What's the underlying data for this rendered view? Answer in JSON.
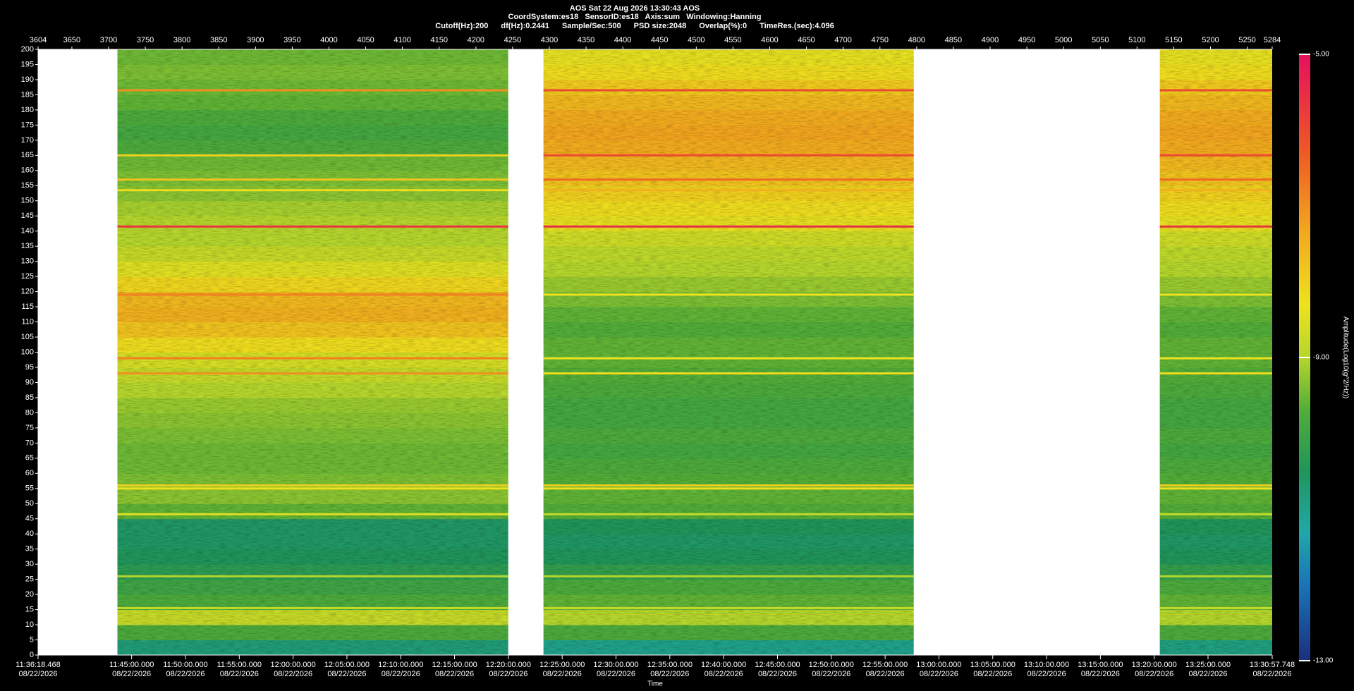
{
  "chart_data": {
    "type": "spectrogram",
    "title": "AOS  Sat 22 Aug 2026 13:30:43  AOS",
    "subtitle": "CoordSystem:es18   SensorID:es18   Axis:sum   Windowing:Hanning",
    "parameters": [
      "Cutoff(Hz):200",
      "df(Hz):0.2441",
      "Sample/Sec:500",
      "PSD size:2048",
      "Overlap(%):0",
      "TimeRes.(sec):4.096"
    ],
    "xlabel": "Time",
    "colorbar_label": "Amplitude(Log10(g^2/Hz))",
    "xlim": [
      3604,
      5284
    ],
    "xticks": [
      3604,
      3650,
      3700,
      3750,
      3800,
      3850,
      3900,
      3950,
      4000,
      4050,
      4100,
      4150,
      4200,
      4250,
      4300,
      4350,
      4400,
      4450,
      4500,
      4550,
      4600,
      4650,
      4700,
      4750,
      4800,
      4850,
      4900,
      4950,
      5000,
      5050,
      5100,
      5150,
      5200,
      5250,
      5284
    ],
    "time_ticks": [
      {
        "value": 3604,
        "label": "11:36:18.468",
        "date": "08/22/2026"
      },
      {
        "value": 3731.36,
        "label": "11:45:00.000",
        "date": "08/22/2026"
      },
      {
        "value": 3804.63,
        "label": "11:50:00.000",
        "date": "08/22/2026"
      },
      {
        "value": 3877.89,
        "label": "11:55:00.000",
        "date": "08/22/2026"
      },
      {
        "value": 3951.15,
        "label": "12:00:00.000",
        "date": "08/22/2026"
      },
      {
        "value": 4024.42,
        "label": "12:05:00.000",
        "date": "08/22/2026"
      },
      {
        "value": 4097.68,
        "label": "12:10:00.000",
        "date": "08/22/2026"
      },
      {
        "value": 4170.95,
        "label": "12:15:00.000",
        "date": "08/22/2026"
      },
      {
        "value": 4244.21,
        "label": "12:20:00.000",
        "date": "08/22/2026"
      },
      {
        "value": 4317.47,
        "label": "12:25:00.000",
        "date": "08/22/2026"
      },
      {
        "value": 4390.74,
        "label": "12:30:00.000",
        "date": "08/22/2026"
      },
      {
        "value": 4464.0,
        "label": "12:35:00.000",
        "date": "08/22/2026"
      },
      {
        "value": 4537.27,
        "label": "12:40:00.000",
        "date": "08/22/2026"
      },
      {
        "value": 4610.53,
        "label": "12:45:00.000",
        "date": "08/22/2026"
      },
      {
        "value": 4683.79,
        "label": "12:50:00.000",
        "date": "08/22/2026"
      },
      {
        "value": 4757.06,
        "label": "12:55:00.000",
        "date": "08/22/2026"
      },
      {
        "value": 4830.32,
        "label": "13:00:00.000",
        "date": "08/22/2026"
      },
      {
        "value": 4903.59,
        "label": "13:05:00.000",
        "date": "08/22/2026"
      },
      {
        "value": 4976.85,
        "label": "13:10:00.000",
        "date": "08/22/2026"
      },
      {
        "value": 5050.12,
        "label": "13:15:00.000",
        "date": "08/22/2026"
      },
      {
        "value": 5123.38,
        "label": "13:20:00.000",
        "date": "08/22/2026"
      },
      {
        "value": 5196.64,
        "label": "13:25:00.000",
        "date": "08/22/2026"
      },
      {
        "value": 5284,
        "label": "13:30:57.748",
        "date": "08/22/2026"
      }
    ],
    "ylim": [
      0,
      200
    ],
    "yticks": [
      0,
      5,
      10,
      15,
      20,
      25,
      30,
      35,
      40,
      45,
      50,
      55,
      60,
      65,
      70,
      75,
      80,
      85,
      90,
      95,
      100,
      105,
      110,
      115,
      120,
      125,
      130,
      135,
      140,
      145,
      150,
      155,
      160,
      165,
      170,
      175,
      180,
      185,
      190,
      195,
      200
    ],
    "ybins": [
      0,
      5,
      10,
      15,
      20,
      25,
      30,
      35,
      40,
      45,
      50,
      55,
      60,
      65,
      70,
      75,
      80,
      85,
      90,
      95,
      100,
      105,
      110,
      115,
      120,
      125,
      130,
      135,
      140,
      145,
      150,
      155,
      160,
      165,
      170,
      175,
      180,
      185,
      190,
      195,
      200
    ],
    "segments": [
      {
        "start": 3712,
        "end": 4244,
        "values": [
          -10.8,
          -9.8,
          -8.8,
          -9.8,
          -10.0,
          -10.3,
          -10.5,
          -10.6,
          -10.6,
          -9.6,
          -9.3,
          -9.4,
          -9.5,
          -9.5,
          -9.4,
          -9.3,
          -9.2,
          -9.0,
          -8.8,
          -8.6,
          -8.2,
          -7.8,
          -7.5,
          -7.6,
          -8.1,
          -8.5,
          -8.8,
          -9.0,
          -9.0,
          -9.1,
          -9.3,
          -9.4,
          -9.5,
          -9.8,
          -9.9,
          -9.8,
          -9.6,
          -9.5,
          -9.4,
          -9.5
        ]
      },
      {
        "start": 4292,
        "end": 4796,
        "values": [
          -11.0,
          -9.8,
          -9.0,
          -9.6,
          -9.8,
          -10.2,
          -10.5,
          -10.6,
          -10.5,
          -9.7,
          -9.6,
          -9.7,
          -9.8,
          -9.9,
          -9.8,
          -9.9,
          -9.9,
          -9.8,
          -9.7,
          -9.6,
          -9.6,
          -9.7,
          -9.6,
          -9.4,
          -9.2,
          -9.0,
          -8.9,
          -8.7,
          -8.4,
          -8.2,
          -8.0,
          -7.8,
          -7.6,
          -7.4,
          -7.3,
          -7.4,
          -7.6,
          -7.9,
          -8.2,
          -8.4
        ]
      },
      {
        "start": 5131,
        "end": 5284,
        "values": [
          -10.9,
          -9.8,
          -9.0,
          -9.6,
          -9.8,
          -10.2,
          -10.5,
          -10.6,
          -10.5,
          -9.7,
          -9.6,
          -9.7,
          -9.8,
          -9.9,
          -9.8,
          -9.9,
          -9.9,
          -9.8,
          -9.7,
          -9.6,
          -9.6,
          -9.7,
          -9.6,
          -9.4,
          -9.2,
          -9.0,
          -8.9,
          -8.7,
          -8.4,
          -8.2,
          -8.0,
          -7.8,
          -7.6,
          -7.4,
          -7.3,
          -7.4,
          -7.6,
          -7.9,
          -8.2,
          -8.4
        ]
      }
    ],
    "tones": [
      {
        "freq": 186.5,
        "values": [
          -7.0,
          -6.0,
          -6.0
        ]
      },
      {
        "freq": 165,
        "values": [
          -8.0,
          -6.0,
          -6.0
        ]
      },
      {
        "freq": 157,
        "values": [
          -7.8,
          -6.5,
          -6.5
        ]
      },
      {
        "freq": 153.5,
        "values": [
          -8.2,
          -7.5,
          -7.5
        ]
      },
      {
        "freq": 141.5,
        "values": [
          -5.6,
          -5.5,
          -5.6
        ]
      },
      {
        "freq": 119,
        "values": [
          -6.8,
          -8.3,
          -8.3
        ]
      },
      {
        "freq": 98,
        "values": [
          -6.8,
          -8.3,
          -8.3
        ]
      },
      {
        "freq": 93,
        "values": [
          -7.0,
          -8.2,
          -8.2
        ]
      },
      {
        "freq": 56,
        "values": [
          -8.0,
          -8.0,
          -8.0
        ]
      },
      {
        "freq": 55,
        "values": [
          -8.3,
          -8.3,
          -8.3
        ]
      },
      {
        "freq": 46.5,
        "values": [
          -8.5,
          -8.8,
          -8.8
        ]
      },
      {
        "freq": 26,
        "values": [
          -9.0,
          -9.0,
          -9.0
        ]
      },
      {
        "freq": 15.5,
        "values": [
          -8.8,
          -8.8,
          -8.8
        ]
      }
    ],
    "clim": [
      -13,
      -5
    ],
    "cticks": [
      {
        "value": -13,
        "label": "-13.00"
      },
      {
        "value": -9,
        "label": "-9.00"
      },
      {
        "value": -5,
        "label": "-5.00"
      }
    ],
    "colormap": [
      {
        "value": -13,
        "color": "#1b2f7e"
      },
      {
        "value": -12,
        "color": "#1a74b8"
      },
      {
        "value": -11.3,
        "color": "#1fa8a8"
      },
      {
        "value": -10.5,
        "color": "#20955a"
      },
      {
        "value": -9.7,
        "color": "#52ad38"
      },
      {
        "value": -9,
        "color": "#b5d62c"
      },
      {
        "value": -8.3,
        "color": "#eee21e"
      },
      {
        "value": -7.3,
        "color": "#f2a51e"
      },
      {
        "value": -6.3,
        "color": "#ef5a24"
      },
      {
        "value": -5,
        "color": "#e60f5e"
      }
    ]
  }
}
